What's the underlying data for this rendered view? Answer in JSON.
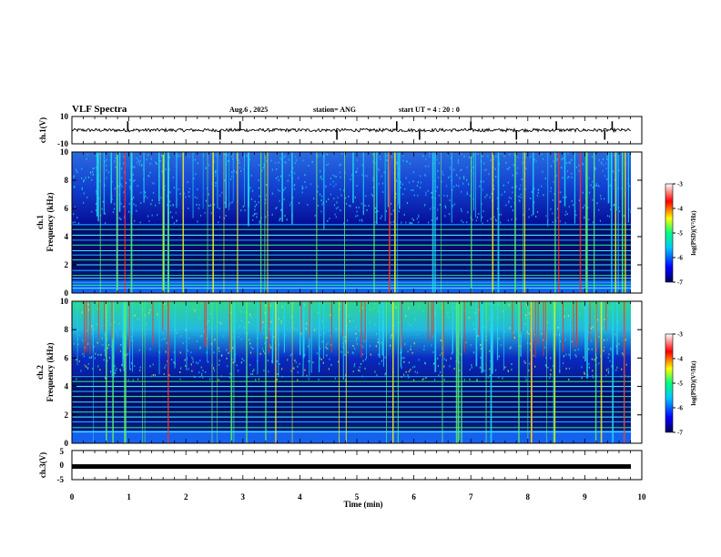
{
  "header": {
    "title": "VLF Spectra",
    "date": "Aug.6 , 2025",
    "station": "station= ANG",
    "start": "start UT = 4 : 20 : 0"
  },
  "chart_data": [
    {
      "type": "line",
      "panel": "ch1-waveform",
      "ylabel": "ch.1(V)",
      "ylim": [
        -10,
        10
      ],
      "yticks": [
        "10",
        "-10"
      ],
      "baseline": 0,
      "note": "noisy waveform with impulsive spikes"
    },
    {
      "type": "heatmap",
      "panel": "ch1-spectrogram",
      "ylabel_line1": "ch.1",
      "ylabel_line2": "Frequency (kHz)",
      "ylim": [
        0,
        10
      ],
      "yticks": [
        "0",
        "2",
        "4",
        "6",
        "8",
        "10"
      ],
      "colorbar": {
        "label": "log(PSD)(V²/Hz)",
        "ticks": [
          "-3",
          "-4",
          "-5",
          "-6",
          "-7"
        ],
        "range": [
          -7,
          -3
        ]
      },
      "lines_khz": [
        0.35,
        0.55,
        0.75,
        1.05,
        1.25,
        1.6,
        2.0,
        2.35,
        2.7,
        3.0,
        3.4,
        3.75,
        4.1,
        4.5,
        4.85
      ]
    },
    {
      "type": "heatmap",
      "panel": "ch2-spectrogram",
      "ylabel_line1": "ch.2",
      "ylabel_line2": "Frequency (kHz)",
      "ylim": [
        0,
        10
      ],
      "yticks": [
        "0",
        "2",
        "4",
        "6",
        "8",
        "10"
      ],
      "colorbar": {
        "label": "log(PSD)(V²/Hz)",
        "ticks": [
          "-3",
          "-4",
          "-5",
          "-6",
          "-7"
        ],
        "range": [
          -7,
          -3
        ]
      },
      "lines_khz": [
        0.8,
        1.1,
        1.5,
        1.85,
        2.2,
        2.55,
        2.9,
        3.3,
        3.65,
        4.0,
        4.35,
        4.7
      ]
    },
    {
      "type": "line",
      "panel": "ch3-waveform",
      "ylabel": "ch.3(V)",
      "ylim": [
        -5,
        5
      ],
      "yticks": [
        "5",
        "0",
        "-5"
      ],
      "baseline": -0.5,
      "xlabel": "Time (min)",
      "xlim": [
        0,
        10
      ],
      "xticks": [
        "0",
        "1",
        "2",
        "3",
        "4",
        "5",
        "6",
        "7",
        "8",
        "9",
        "10"
      ]
    }
  ],
  "colors": {
    "axis": "#000000",
    "colormap": [
      "#000060",
      "#0000ff",
      "#00c8ff",
      "#00ff80",
      "#ffff00",
      "#ff0000",
      "#ffffff"
    ]
  }
}
